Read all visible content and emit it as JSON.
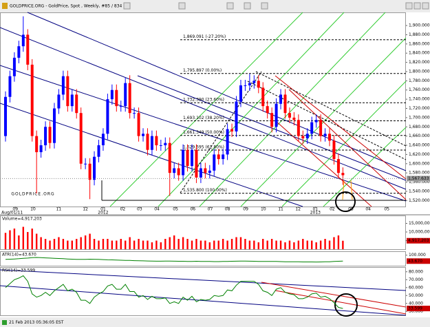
{
  "window_title": "GOLDPRICE.ORG - GoldPrice, Spot , Weekly, #85 / 834",
  "status": "21 Feb 2013 05:36:05 EST",
  "chart_data": [
    {
      "type": "candlestick",
      "watermark": "GOLDPRICE.ORG",
      "up_color": "#0000ff",
      "down_color": "#ff0000",
      "xlim": [
        -1.24,
        90.2
      ],
      "xticks": [
        {
          "value": 2.2,
          "label": "09"
        },
        {
          "value": 6.2,
          "label": "10"
        },
        {
          "value": 12,
          "label": "11"
        },
        {
          "value": 18,
          "label": "12"
        },
        {
          "value": 22,
          "label": "01"
        },
        {
          "value": 26.4,
          "label": "02"
        },
        {
          "value": 30.2,
          "label": "03"
        },
        {
          "value": 34.1,
          "label": "04"
        },
        {
          "value": 38.3,
          "label": "05"
        },
        {
          "value": 42.2,
          "label": "06"
        },
        {
          "value": 46.1,
          "label": "07"
        },
        {
          "value": 50,
          "label": "08"
        },
        {
          "value": 54.1,
          "label": "09"
        },
        {
          "value": 58.1,
          "label": "10"
        },
        {
          "value": 62,
          "label": "11"
        },
        {
          "value": 65.9,
          "label": "12"
        },
        {
          "value": 69.8,
          "label": "01"
        },
        {
          "value": 73.6,
          "label": "02"
        },
        {
          "value": 77.8,
          "label": "03"
        },
        {
          "value": 81.7,
          "label": "04"
        },
        {
          "value": 85.9,
          "label": "05"
        }
      ],
      "xticks_secondary": [
        {
          "value": 1.5,
          "label": "Aug/01/11"
        },
        {
          "value": 22,
          "label": "2012"
        },
        {
          "value": 69.8,
          "label": "2013"
        }
      ],
      "ylim": [
        1507,
        1927
      ],
      "yticks": [
        {
          "value": 1520,
          "label": "1,520.000"
        },
        {
          "value": 1540,
          "label": "1,540.000"
        },
        {
          "value": 1560,
          "label": "1,560.000"
        },
        {
          "value": 1580,
          "label": "1,580.000"
        },
        {
          "value": 1600,
          "label": "1,600.000"
        },
        {
          "value": 1620,
          "label": "1,620.000"
        },
        {
          "value": 1640,
          "label": "1,640.000"
        },
        {
          "value": 1660,
          "label": "1,660.000"
        },
        {
          "value": 1680,
          "label": "1,680.000"
        },
        {
          "value": 1700,
          "label": "1,700.000"
        },
        {
          "value": 1720,
          "label": "1,720.000"
        },
        {
          "value": 1740,
          "label": "1,740.000"
        },
        {
          "value": 1760,
          "label": "1,760.000"
        },
        {
          "value": 1780,
          "label": "1,780.000"
        },
        {
          "value": 1800,
          "label": "1,800.000"
        },
        {
          "value": 1820,
          "label": "1,820.000"
        },
        {
          "value": 1840,
          "label": "1,840.000"
        },
        {
          "value": 1860,
          "label": "1,860.000"
        },
        {
          "value": 1880,
          "label": "1,880.000"
        },
        {
          "value": 1900,
          "label": "1,900.000"
        }
      ],
      "price_markers": [
        {
          "value": 1567.633,
          "label": "1,567.633"
        }
      ],
      "fib_levels": [
        {
          "value": 1869.091,
          "label": "1,869.091 (-27.20%)"
        },
        {
          "value": 1795.897,
          "label": "1,795.897 (0.00%)"
        },
        {
          "value": 1732.39,
          "label": "1,732.390 (23.60%)"
        },
        {
          "value": 1693.102,
          "label": "1,693.102 (38.20%)"
        },
        {
          "value": 1661.349,
          "label": "1,661.349 (50.00%)"
        },
        {
          "value": 1629.595,
          "label": "1,629.595 (61.80%)"
        },
        {
          "value": 1535.8,
          "label": "1,535.800 (100.00%)"
        }
      ],
      "open": [
        1660,
        1745,
        1790,
        1830,
        1855,
        1880,
        1815,
        1660,
        1625,
        1640,
        1680,
        1645,
        1720,
        1750,
        1790,
        1725,
        1750,
        1710,
        1600,
        1600,
        1565,
        1615,
        1640,
        1665,
        1740,
        1760,
        1725,
        1725,
        1775,
        1710,
        1710,
        1660,
        1665,
        1630,
        1660,
        1640,
        1640,
        1645,
        1580,
        1590,
        1575,
        1630,
        1595,
        1630,
        1570,
        1590,
        1580,
        1585,
        1620,
        1610,
        1620,
        1675,
        1670,
        1735,
        1770,
        1770,
        1775,
        1780,
        1765,
        1725,
        1710,
        1680,
        1730,
        1750,
        1710,
        1700,
        1695,
        1660,
        1655,
        1665,
        1690,
        1695,
        1660,
        1665,
        1650,
        1610,
        1580
      ],
      "high": [
        1757,
        1802,
        1842,
        1867,
        1920,
        1892,
        1827,
        1672,
        1652,
        1692,
        1692,
        1732,
        1762,
        1802,
        1802,
        1762,
        1762,
        1722,
        1612,
        1612,
        1627,
        1652,
        1677,
        1752,
        1772,
        1772,
        1737,
        1787,
        1792,
        1722,
        1722,
        1677,
        1677,
        1672,
        1672,
        1652,
        1657,
        1657,
        1602,
        1602,
        1642,
        1642,
        1642,
        1642,
        1602,
        1602,
        1597,
        1632,
        1632,
        1632,
        1687,
        1687,
        1747,
        1782,
        1782,
        1795,
        1792,
        1792,
        1777,
        1737,
        1722,
        1742,
        1762,
        1762,
        1722,
        1712,
        1707,
        1672,
        1677,
        1702,
        1707,
        1707,
        1677,
        1677,
        1662,
        1622,
        1592
      ],
      "low": [
        1648,
        1733,
        1778,
        1818,
        1843,
        1803,
        1648,
        1535,
        1613,
        1628,
        1633,
        1633,
        1708,
        1738,
        1713,
        1713,
        1698,
        1588,
        1588,
        1523,
        1553,
        1603,
        1628,
        1653,
        1728,
        1713,
        1713,
        1713,
        1698,
        1698,
        1648,
        1648,
        1618,
        1618,
        1628,
        1628,
        1628,
        1530,
        1568,
        1563,
        1563,
        1583,
        1583,
        1558,
        1558,
        1568,
        1568,
        1573,
        1598,
        1598,
        1608,
        1658,
        1658,
        1723,
        1758,
        1758,
        1763,
        1753,
        1713,
        1698,
        1668,
        1668,
        1718,
        1698,
        1688,
        1683,
        1648,
        1643,
        1643,
        1653,
        1678,
        1648,
        1648,
        1638,
        1598,
        1568,
        1554
      ],
      "close": [
        1745,
        1790,
        1830,
        1855,
        1880,
        1815,
        1660,
        1625,
        1640,
        1680,
        1645,
        1720,
        1750,
        1790,
        1725,
        1750,
        1710,
        1600,
        1600,
        1565,
        1615,
        1640,
        1665,
        1740,
        1760,
        1725,
        1725,
        1775,
        1710,
        1710,
        1660,
        1665,
        1630,
        1660,
        1640,
        1640,
        1645,
        1580,
        1590,
        1575,
        1630,
        1595,
        1630,
        1570,
        1590,
        1580,
        1585,
        1620,
        1610,
        1620,
        1675,
        1670,
        1735,
        1770,
        1770,
        1775,
        1780,
        1765,
        1725,
        1710,
        1680,
        1730,
        1750,
        1710,
        1700,
        1695,
        1660,
        1655,
        1665,
        1690,
        1695,
        1660,
        1665,
        1650,
        1610,
        1580,
        1575
      ]
    },
    {
      "type": "bar",
      "label": "Volume=4,917,203",
      "last_label": "4,917,203",
      "color": "#ff0000",
      "ylim": [
        0,
        19200000
      ],
      "yticks": [
        {
          "value": 5000000,
          "label": "5,000,000"
        },
        {
          "value": 10000000,
          "label": "10,000,000"
        },
        {
          "value": 15000000,
          "label": "15,000,000"
        }
      ],
      "values": [
        9500000,
        11000000,
        12000000,
        8000000,
        13000000,
        10000000,
        12000000,
        9000000,
        7000000,
        6000000,
        5000000,
        6000000,
        7000000,
        6000000,
        5000000,
        5000000,
        6000000,
        7000000,
        8000000,
        9000000,
        6000000,
        5000000,
        6000000,
        6000000,
        5000000,
        5000000,
        6000000,
        5000000,
        7000000,
        5000000,
        6000000,
        5000000,
        5000000,
        4000000,
        5000000,
        4000000,
        6000000,
        7000000,
        8000000,
        6000000,
        7000000,
        6000000,
        5000000,
        6000000,
        5000000,
        5000000,
        4000000,
        5000000,
        5000000,
        6000000,
        5000000,
        6000000,
        7000000,
        7000000,
        6000000,
        5000000,
        5000000,
        4000000,
        6000000,
        5000000,
        6000000,
        5000000,
        5000000,
        4000000,
        5000000,
        4000000,
        5000000,
        6000000,
        5000000,
        5000000,
        4000000,
        5000000,
        6000000,
        5000000,
        7000000,
        8000000,
        4917203
      ]
    },
    {
      "type": "line",
      "label": "ATR(14)=43.670",
      "last_label": "43.670",
      "color": "#008000",
      "ylim": [
        0,
        130
      ],
      "yticks": [
        {
          "value": 100,
          "label": "100.000"
        }
      ],
      "values": [
        60,
        62,
        64,
        66,
        70,
        72,
        76,
        78,
        76,
        74,
        72,
        70,
        68,
        66,
        64,
        62,
        60,
        60,
        60,
        62,
        61,
        60,
        58,
        56,
        55,
        54,
        52,
        50,
        50,
        48,
        47,
        46,
        45,
        44,
        43,
        43,
        44,
        44,
        43,
        42,
        42,
        41,
        41,
        42,
        41,
        40,
        40,
        39,
        39,
        40,
        41,
        42,
        43,
        44,
        44,
        43,
        42,
        41,
        41,
        40,
        40,
        40,
        39,
        38,
        38,
        37,
        37,
        36,
        36,
        36,
        35,
        36,
        37,
        38,
        40,
        42,
        43.67
      ]
    },
    {
      "type": "line",
      "label": "RSI(14)=33.599",
      "last_label": "33.599",
      "color": "#008000",
      "ylim": [
        25,
        85
      ],
      "yticks": [
        {
          "value": 30,
          "label": "30.000"
        },
        {
          "value": 40,
          "label": "40.000"
        },
        {
          "value": 50,
          "label": "50.000"
        },
        {
          "value": 60,
          "label": "60.000"
        },
        {
          "value": 70,
          "label": "70.000"
        },
        {
          "value": 80,
          "label": "80.000"
        }
      ],
      "values": [
        60,
        65,
        70,
        72,
        75,
        68,
        52,
        48,
        50,
        54,
        50,
        56,
        60,
        64,
        56,
        58,
        54,
        44,
        44,
        40,
        48,
        52,
        55,
        62,
        64,
        58,
        58,
        64,
        55,
        55,
        48,
        50,
        45,
        49,
        46,
        46,
        47,
        40,
        42,
        40,
        48,
        44,
        49,
        42,
        45,
        44,
        45,
        50,
        49,
        50,
        57,
        56,
        63,
        68,
        68,
        68,
        68,
        64,
        56,
        54,
        50,
        58,
        60,
        54,
        52,
        51,
        46,
        46,
        48,
        52,
        53,
        48,
        49,
        46,
        41,
        35,
        33.599
      ]
    }
  ]
}
